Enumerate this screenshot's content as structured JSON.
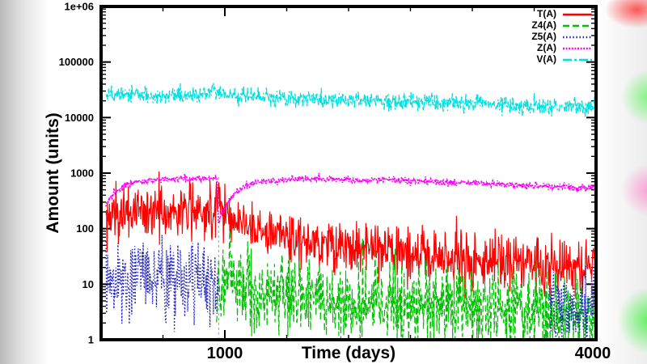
{
  "chart_data": {
    "type": "line",
    "title": "",
    "xlabel": "Time (days)",
    "ylabel": "Amount (units)",
    "xlim": [
      0,
      4000
    ],
    "yscale": "log",
    "ylim": [
      1,
      1000000
    ],
    "ytick_labels": [
      "1",
      "10",
      "100",
      "1000",
      "10000",
      "100000",
      "1e+06"
    ],
    "xticks": [
      {
        "value": 1000,
        "label": "1000"
      },
      {
        "value": 4000,
        "label": "4000"
      }
    ],
    "xminor_step": 500,
    "grid": false,
    "legend_position": "top-right-inside",
    "event_line": {
      "x": 950,
      "from": 1,
      "to": 900,
      "color": "#9a9a9a"
    },
    "series": [
      {
        "name": "T(A)",
        "color": "#ff0000",
        "style": "solid",
        "width": 1.2,
        "noise_sigma_log10": 0.24,
        "segments": [
          [
            [
              40,
              150
            ],
            [
              200,
              195
            ],
            [
              600,
              205
            ],
            [
              900,
              215
            ],
            [
              936,
              330
            ],
            [
              950,
              430
            ],
            [
              972,
              240
            ],
            [
              1060,
              150
            ],
            [
              1200,
              110
            ],
            [
              1450,
              78
            ],
            [
              1700,
              60
            ],
            [
              2000,
              47
            ],
            [
              2400,
              37
            ],
            [
              2800,
              30
            ],
            [
              3200,
              26
            ],
            [
              3600,
              23
            ],
            [
              4000,
              21
            ]
          ]
        ]
      },
      {
        "name": "Z4(A)",
        "color": "#00c000",
        "style": "dashed",
        "width": 1.2,
        "noise_sigma_log10": 0.38,
        "segments": [
          [
            [
              933,
              1.6
            ],
            [
              946,
              28
            ],
            [
              960,
              7
            ],
            [
              1000,
              10
            ],
            [
              1200,
              9
            ],
            [
              1600,
              6.2
            ],
            [
              2200,
              4.6
            ],
            [
              2800,
              3.8
            ],
            [
              3400,
              3.2
            ],
            [
              4000,
              2.9
            ]
          ]
        ]
      },
      {
        "name": "Z5(A)",
        "color": "#2020c0",
        "style": "dotted",
        "width": 1.4,
        "noise_sigma_log10": 0.33,
        "segments": [
          [
            [
              40,
              12
            ],
            [
              250,
              13
            ],
            [
              600,
              12.5
            ],
            [
              880,
              11.5
            ],
            [
              948,
              7
            ]
          ],
          [
            [
              3620,
              3.9
            ],
            [
              3820,
              3.7
            ],
            [
              4000,
              3.5
            ]
          ]
        ]
      },
      {
        "name": "Z(A)",
        "color": "#ff00ff",
        "style": "dense-dot",
        "width": 1.7,
        "noise_sigma_log10": 0.028,
        "segments": [
          [
            [
              40,
              270
            ],
            [
              110,
              470
            ],
            [
              230,
              660
            ],
            [
              420,
              750
            ],
            [
              650,
              790
            ],
            [
              880,
              820
            ],
            [
              938,
              825
            ],
            [
              947,
              130
            ],
            [
              985,
              210
            ],
            [
              1060,
              400
            ],
            [
              1160,
              580
            ],
            [
              1300,
              700
            ],
            [
              1520,
              765
            ],
            [
              1800,
              780
            ],
            [
              2200,
              755
            ],
            [
              2600,
              715
            ],
            [
              3000,
              660
            ],
            [
              3400,
              605
            ],
            [
              3700,
              565
            ],
            [
              4000,
              535
            ]
          ]
        ]
      },
      {
        "name": "V(A)",
        "color": "#00e0e0",
        "style": "dash-dot",
        "width": 1.3,
        "noise_sigma_log10": 0.075,
        "segments": [
          [
            [
              40,
              26000
            ],
            [
              300,
              25500
            ],
            [
              620,
              25000
            ],
            [
              860,
              25200
            ],
            [
              893,
              27500
            ],
            [
              903,
              56000
            ],
            [
              913,
              27500
            ],
            [
              1100,
              23800
            ],
            [
              1500,
              22000
            ],
            [
              2000,
              20500
            ],
            [
              2500,
              19000
            ],
            [
              3000,
              17600
            ],
            [
              3500,
              16300
            ],
            [
              4000,
              15300
            ]
          ]
        ]
      }
    ]
  }
}
